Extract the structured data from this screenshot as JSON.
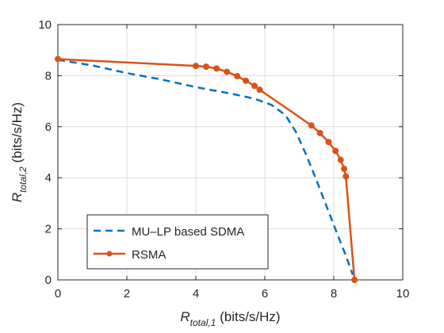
{
  "chart_data": {
    "type": "line",
    "xlabel": {
      "main": "R",
      "sub": "total,1",
      "unit": " (bits/s/Hz)"
    },
    "ylabel": {
      "main": "R",
      "sub": "total,2",
      "unit": " (bits/s/Hz)"
    },
    "xlim": [
      0,
      10
    ],
    "ylim": [
      0,
      10
    ],
    "xticks": [
      0,
      2,
      4,
      6,
      8,
      10
    ],
    "yticks": [
      0,
      2,
      4,
      6,
      8,
      10
    ],
    "grid": true,
    "legend_position": "bottom-left",
    "series": [
      {
        "name": "MU–LP based SDMA",
        "color": "#0072BD",
        "style": "dashed",
        "x": [
          0,
          1,
          2,
          3,
          4,
          5,
          5.7,
          6.2,
          6.6,
          6.9,
          7.2,
          7.5,
          7.8,
          8.1,
          8.35,
          8.55
        ],
        "y": [
          8.62,
          8.4,
          8.1,
          7.85,
          7.55,
          7.3,
          7.1,
          6.85,
          6.45,
          5.8,
          4.9,
          3.9,
          2.85,
          1.8,
          0.95,
          0.2
        ]
      },
      {
        "name": "RSMA",
        "color": "#D95319",
        "style": "solid-markers",
        "x": [
          0,
          4.0,
          4.3,
          4.6,
          4.9,
          5.2,
          5.45,
          5.7,
          5.85,
          7.35,
          7.6,
          7.85,
          8.05,
          8.2,
          8.3,
          8.35,
          8.6
        ],
        "y": [
          8.65,
          8.38,
          8.35,
          8.28,
          8.15,
          7.98,
          7.8,
          7.6,
          7.45,
          6.05,
          5.75,
          5.4,
          5.05,
          4.7,
          4.35,
          4.05,
          0
        ]
      }
    ]
  }
}
